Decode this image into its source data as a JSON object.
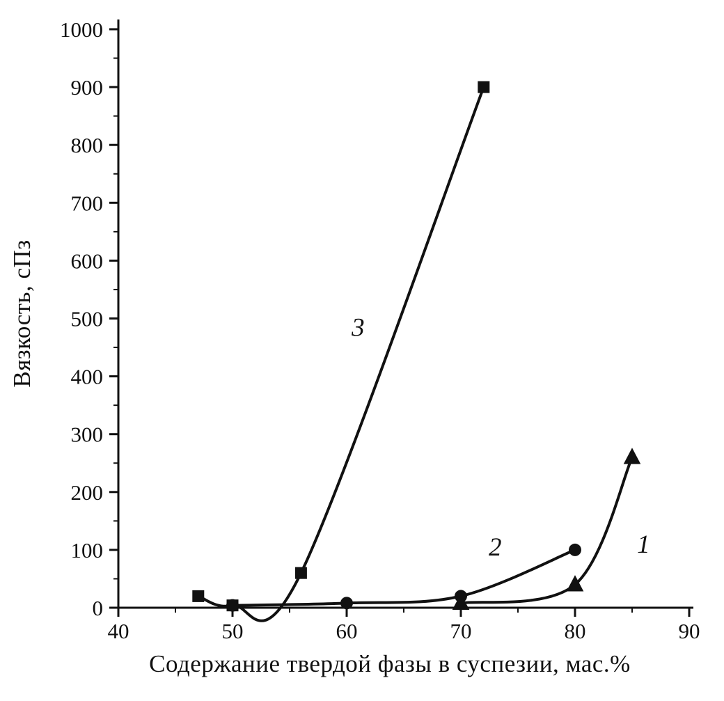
{
  "figure": {
    "background": "#ffffff",
    "ink": "#111111"
  },
  "chart_data": {
    "type": "line",
    "title": "",
    "xlabel": "Содержание твердой фазы в суспезии, мас.%",
    "ylabel": "Вязкость, сПз",
    "xlim": [
      40,
      90
    ],
    "ylim": [
      0,
      1000
    ],
    "xticks": [
      40,
      50,
      60,
      70,
      80,
      90
    ],
    "yticks": [
      0,
      100,
      200,
      300,
      400,
      500,
      600,
      700,
      800,
      900,
      1000
    ],
    "minor_tick_step": {
      "x": 5,
      "y": 50
    },
    "grid": false,
    "legend_style": "inline numeric curve labels",
    "series": [
      {
        "name": "3",
        "marker": "square",
        "x": [
          47,
          50,
          56,
          72
        ],
        "y": [
          20,
          4,
          60,
          900
        ],
        "label": {
          "text": "3",
          "x": 61,
          "y": 470
        }
      },
      {
        "name": "2",
        "marker": "circle",
        "x": [
          50,
          60,
          70,
          80
        ],
        "y": [
          4,
          8,
          20,
          100
        ],
        "label": {
          "text": "2",
          "x": 73,
          "y": 90
        }
      },
      {
        "name": "1",
        "marker": "triangle",
        "x": [
          70,
          80,
          85
        ],
        "y": [
          8,
          40,
          260
        ],
        "label": {
          "text": "1",
          "x": 86,
          "y": 95
        }
      }
    ]
  }
}
